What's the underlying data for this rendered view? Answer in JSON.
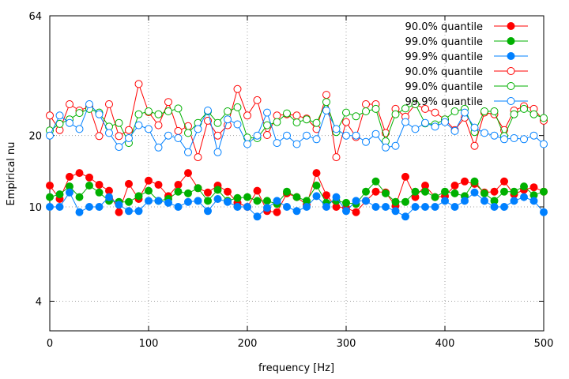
{
  "chart_data": {
    "type": "line",
    "title": "",
    "xlabel": "frequency [Hz]",
    "ylabel": "Empirical nu",
    "xlim": [
      0,
      500
    ],
    "ylim": [
      3,
      64
    ],
    "y_scale": "log",
    "grid": true,
    "legend_position": "top-right",
    "x_ticks": [
      0,
      100,
      200,
      300,
      400,
      500
    ],
    "y_ticks": [
      4,
      10,
      20,
      64
    ],
    "x": [
      0,
      10,
      20,
      30,
      40,
      50,
      60,
      70,
      80,
      90,
      100,
      110,
      120,
      130,
      140,
      150,
      160,
      170,
      180,
      190,
      200,
      210,
      220,
      230,
      240,
      250,
      260,
      270,
      280,
      290,
      300,
      310,
      320,
      330,
      340,
      350,
      360,
      370,
      380,
      390,
      400,
      410,
      420,
      430,
      440,
      450,
      460,
      470,
      480,
      490,
      500
    ],
    "series": [
      {
        "name": "90.0% quantile",
        "color": "#ff0000",
        "marker": "filled-circle",
        "values": [
          12.3,
          10.8,
          13.4,
          13.9,
          13.3,
          12.4,
          11.7,
          9.5,
          12.5,
          10.8,
          12.9,
          12.4,
          11.1,
          12.4,
          13.9,
          12.0,
          11.5,
          12.3,
          11.6,
          10.4,
          10.0,
          11.7,
          9.6,
          9.5,
          11.4,
          11.0,
          10.2,
          13.9,
          11.2,
          10.0,
          9.9,
          9.5,
          10.6,
          11.6,
          11.5,
          10.1,
          13.4,
          11.0,
          12.3,
          11.0,
          11.1,
          12.3,
          12.8,
          12.5,
          11.5,
          11.6,
          12.8,
          11.3,
          11.8,
          12.1,
          11.6
        ]
      },
      {
        "name": "99.0% quantile",
        "color": "#00b000",
        "marker": "filled-circle",
        "values": [
          11.0,
          11.3,
          12.2,
          11.0,
          12.3,
          11.5,
          10.6,
          10.5,
          10.5,
          11.1,
          11.7,
          10.6,
          10.8,
          11.6,
          11.4,
          12.0,
          10.6,
          11.8,
          10.6,
          10.9,
          11.0,
          10.6,
          10.6,
          10.3,
          11.6,
          11.0,
          10.6,
          12.3,
          10.4,
          10.6,
          10.4,
          10.3,
          11.6,
          12.8,
          11.4,
          10.5,
          10.5,
          11.6,
          11.6,
          11.0,
          11.6,
          11.4,
          11.1,
          12.8,
          11.4,
          10.6,
          11.6,
          11.6,
          12.2,
          11.2,
          11.6
        ]
      },
      {
        "name": "99.9% quantile",
        "color": "#0080ff",
        "marker": "filled-circle",
        "values": [
          10.0,
          10.0,
          11.5,
          9.5,
          10.0,
          10.0,
          11.0,
          10.2,
          9.6,
          9.6,
          10.6,
          10.6,
          10.4,
          10.0,
          10.5,
          10.6,
          9.6,
          10.8,
          10.5,
          10.0,
          10.0,
          9.1,
          9.9,
          10.6,
          10.0,
          9.6,
          10.0,
          11.1,
          10.0,
          11.0,
          9.6,
          10.6,
          10.6,
          10.0,
          10.0,
          9.6,
          9.1,
          10.0,
          10.0,
          10.0,
          10.6,
          10.0,
          10.6,
          11.5,
          10.6,
          10.0,
          10.0,
          10.6,
          11.0,
          10.6,
          9.5
        ]
      },
      {
        "name": "90.0% quantile",
        "color": "#ff0000",
        "marker": "open-circle",
        "values": [
          24.3,
          21.1,
          27.1,
          25.5,
          26.5,
          19.9,
          27.1,
          19.9,
          21.1,
          33.0,
          25.1,
          22.1,
          27.7,
          20.9,
          21.9,
          16.2,
          23.1,
          20.0,
          22.1,
          31.4,
          24.3,
          28.2,
          20.1,
          24.3,
          24.6,
          24.3,
          23.6,
          21.3,
          29.7,
          16.2,
          22.8,
          19.7,
          27.1,
          27.1,
          20.5,
          25.9,
          24.0,
          27.1,
          25.9,
          25.0,
          23.4,
          21.1,
          23.8,
          18.1,
          25.0,
          24.6,
          21.1,
          25.5,
          26.6,
          25.9,
          23.1
        ]
      },
      {
        "name": "99.0% quantile",
        "color": "#00b000",
        "marker": "open-circle",
        "values": [
          21.0,
          22.4,
          23.4,
          24.9,
          25.9,
          25.0,
          21.8,
          22.6,
          18.6,
          24.6,
          25.3,
          24.6,
          25.3,
          26.0,
          20.5,
          22.6,
          25.3,
          22.6,
          25.3,
          26.3,
          19.6,
          19.5,
          22.1,
          22.8,
          24.8,
          22.7,
          23.4,
          22.6,
          27.7,
          20.7,
          25.0,
          24.1,
          25.3,
          25.9,
          18.9,
          24.6,
          26.0,
          27.1,
          22.5,
          22.3,
          23.4,
          25.3,
          25.9,
          20.7,
          25.3,
          25.3,
          19.9,
          24.6,
          25.9,
          24.6,
          23.7
        ]
      },
      {
        "name": "99.9% quantile",
        "color": "#0080ff",
        "marker": "open-circle",
        "values": [
          20.0,
          24.3,
          22.6,
          21.3,
          27.1,
          24.6,
          20.5,
          17.9,
          19.5,
          22.1,
          21.3,
          17.8,
          20.0,
          19.5,
          17.0,
          21.3,
          25.5,
          17.0,
          23.4,
          22.3,
          18.4,
          20.0,
          25.0,
          18.6,
          20.0,
          18.4,
          20.0,
          19.3,
          25.5,
          21.3,
          20.0,
          20.0,
          18.8,
          20.3,
          17.8,
          18.1,
          22.8,
          21.3,
          22.6,
          21.8,
          22.8,
          20.9,
          25.0,
          21.6,
          20.5,
          20.0,
          19.3,
          19.5,
          19.3,
          20.0,
          18.4
        ]
      }
    ]
  }
}
